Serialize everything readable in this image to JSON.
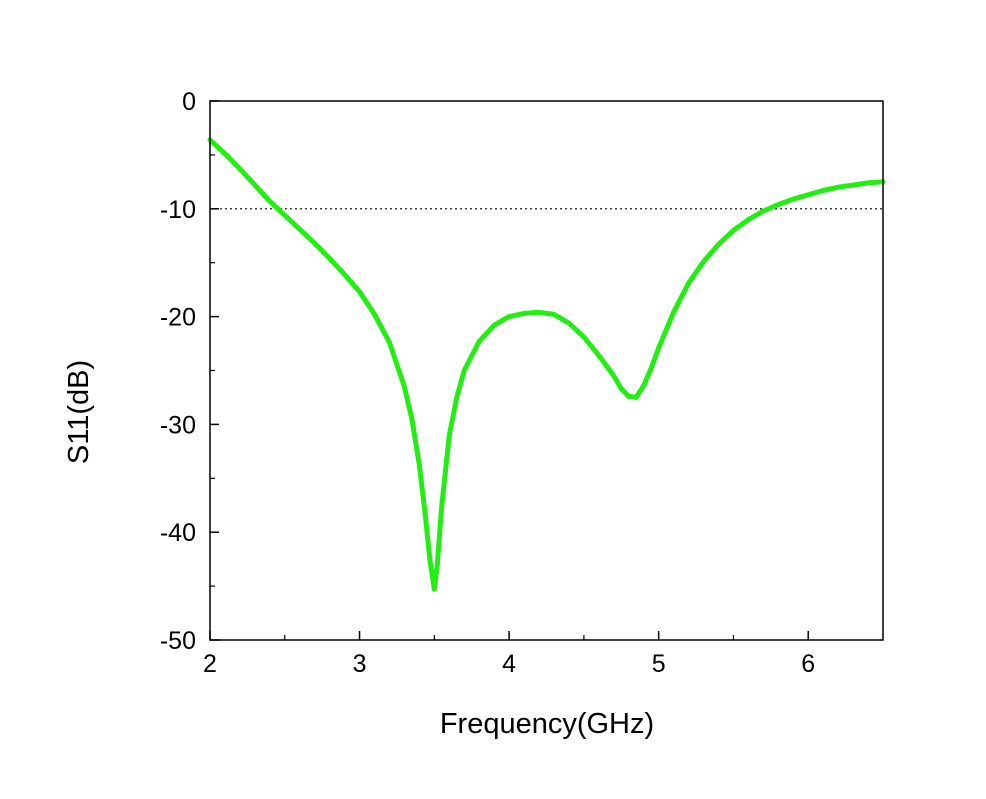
{
  "chart_data": {
    "type": "line",
    "title": "",
    "xlabel": "Frequency(GHz)",
    "ylabel": "S11(dB)",
    "xlim": [
      2,
      6.5
    ],
    "ylim": [
      -50,
      0
    ],
    "xticks": [
      2,
      3,
      4,
      5,
      6
    ],
    "xtick_labels": [
      "2",
      "3",
      "4",
      "5",
      "6"
    ],
    "yticks": [
      0,
      -10,
      -20,
      -30,
      -40,
      -50
    ],
    "ytick_labels": [
      "0",
      "-10",
      "-20",
      "-30",
      "-40",
      "-50"
    ],
    "grid": false,
    "legend": "none",
    "reference_line": {
      "y": -10,
      "style": "dotted",
      "color": "#000000"
    },
    "series": [
      {
        "color": "#22ee11",
        "x": [
          2.0,
          2.1,
          2.2,
          2.3,
          2.4,
          2.5,
          2.6,
          2.7,
          2.8,
          2.9,
          3.0,
          3.1,
          3.2,
          3.3,
          3.35,
          3.4,
          3.44,
          3.47,
          3.5,
          3.52,
          3.55,
          3.6,
          3.65,
          3.7,
          3.8,
          3.9,
          4.0,
          4.1,
          4.2,
          4.3,
          4.4,
          4.5,
          4.6,
          4.7,
          4.75,
          4.8,
          4.85,
          4.9,
          4.95,
          5.0,
          5.1,
          5.2,
          5.3,
          5.4,
          5.5,
          5.6,
          5.7,
          5.8,
          5.9,
          6.0,
          6.1,
          6.2,
          6.3,
          6.4,
          6.5
        ],
        "y": [
          -3.6,
          -4.9,
          -6.3,
          -7.8,
          -9.3,
          -10.6,
          -11.9,
          -13.2,
          -14.6,
          -16.1,
          -17.7,
          -19.8,
          -22.4,
          -26.5,
          -29.5,
          -33.8,
          -38.5,
          -42.5,
          -45.3,
          -43.0,
          -37.5,
          -31.0,
          -27.5,
          -25.0,
          -22.3,
          -20.8,
          -20.0,
          -19.7,
          -19.6,
          -19.8,
          -20.6,
          -21.9,
          -23.6,
          -25.5,
          -26.7,
          -27.4,
          -27.5,
          -26.4,
          -24.8,
          -22.9,
          -19.6,
          -16.9,
          -14.9,
          -13.3,
          -12.0,
          -11.0,
          -10.2,
          -9.6,
          -9.1,
          -8.7,
          -8.3,
          -8.0,
          -7.8,
          -7.6,
          -7.5
        ]
      }
    ]
  }
}
